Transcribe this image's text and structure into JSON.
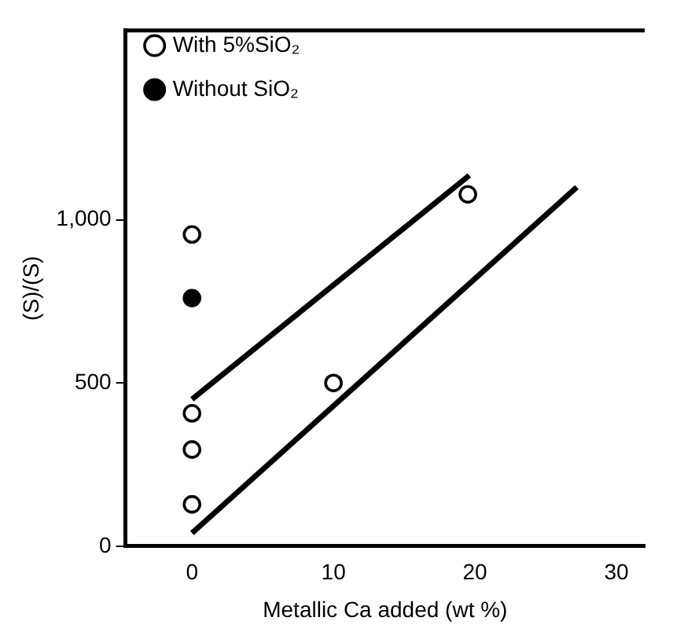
{
  "chart_data": {
    "type": "scatter",
    "xlabel": "Metallic Ca added (wt %)",
    "ylabel": "(S)/(S)",
    "xlim": [
      -4.7,
      32
    ],
    "ylim": [
      0,
      1580
    ],
    "xticks": [
      0,
      10,
      20,
      30
    ],
    "yticks": [
      0,
      500,
      {
        "value": 1000,
        "label": "1,000"
      }
    ],
    "grid": false,
    "legend": "top left",
    "series": [
      {
        "name": "With 5%SiO₂",
        "color": "#ffffff",
        "marker": "circle",
        "x": [
          0,
          0,
          0,
          0,
          10,
          19.5
        ],
        "values": [
          955,
          407,
          296,
          128,
          500,
          1078
        ]
      },
      {
        "name": "Without SiO₂",
        "color": "#000000",
        "marker": "circle",
        "x": [
          0
        ],
        "values": [
          760
        ]
      },
      {
        "type": "line",
        "color": "#000000",
        "marker": "none",
        "x": [
          0,
          19.6
        ],
        "values": [
          450,
          1136
        ]
      },
      {
        "type": "line",
        "color": "#000000",
        "marker": "none",
        "x": [
          0,
          27.2
        ],
        "values": [
          40,
          1100
        ]
      }
    ]
  }
}
